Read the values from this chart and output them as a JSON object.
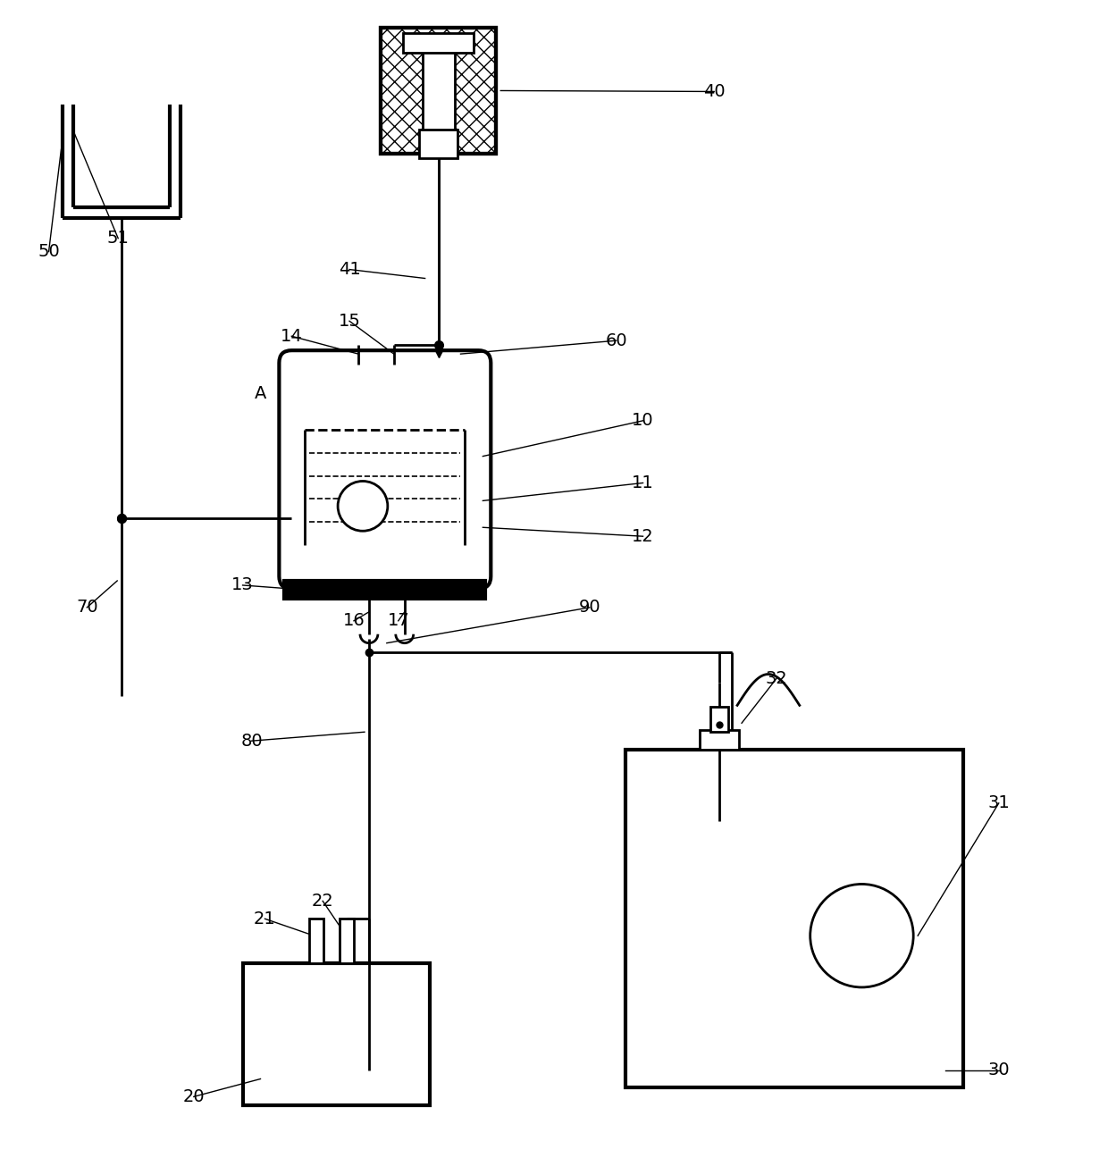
{
  "bg_color": "#ffffff",
  "lw": 2.0,
  "tlw": 3.0,
  "fs": 14,
  "figsize": [
    12.4,
    12.96
  ],
  "dpi": 100
}
